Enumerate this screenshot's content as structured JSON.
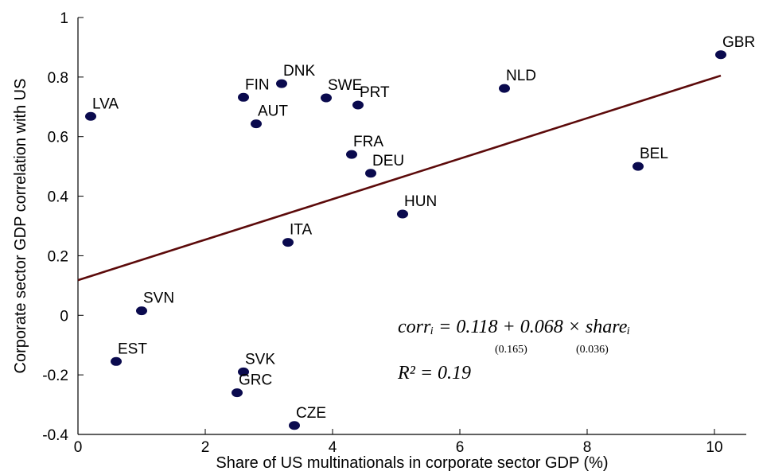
{
  "chart_data": {
    "type": "scatter",
    "xlabel": "Share of US multinationals in corporate sector GDP (%)",
    "ylabel": "Corporate sector GDP correlation with US",
    "xlim": [
      0,
      10.5
    ],
    "ylim": [
      -0.4,
      1
    ],
    "xticks": [
      0,
      2,
      4,
      6,
      8,
      10
    ],
    "yticks": [
      -0.4,
      -0.2,
      0,
      0.2,
      0.4,
      0.6,
      0.8,
      1
    ],
    "xtick_labels": [
      "0",
      "2",
      "4",
      "6",
      "8",
      "10"
    ],
    "ytick_labels": [
      "-0.4",
      "-0.2",
      "0",
      "0.2",
      "0.4",
      "0.6",
      "0.8",
      "1"
    ],
    "grid": false,
    "point_color": "#0a0a4e",
    "line_color": "#5c0a0a",
    "points": [
      {
        "label": "GBR",
        "x": 10.1,
        "y": 0.875
      },
      {
        "label": "NLD",
        "x": 6.7,
        "y": 0.762
      },
      {
        "label": "BEL",
        "x": 8.8,
        "y": 0.5
      },
      {
        "label": "HUN",
        "x": 5.1,
        "y": 0.34
      },
      {
        "label": "DEU",
        "x": 4.6,
        "y": 0.477
      },
      {
        "label": "FRA",
        "x": 4.3,
        "y": 0.54
      },
      {
        "label": "PRT",
        "x": 4.4,
        "y": 0.706
      },
      {
        "label": "SWE",
        "x": 3.9,
        "y": 0.73
      },
      {
        "label": "DNK",
        "x": 3.2,
        "y": 0.778
      },
      {
        "label": "FIN",
        "x": 2.6,
        "y": 0.732
      },
      {
        "label": "AUT",
        "x": 2.8,
        "y": 0.643
      },
      {
        "label": "LVA",
        "x": 0.2,
        "y": 0.668
      },
      {
        "label": "ITA",
        "x": 3.3,
        "y": 0.245
      },
      {
        "label": "SVN",
        "x": 1.0,
        "y": 0.015
      },
      {
        "label": "EST",
        "x": 0.6,
        "y": -0.155
      },
      {
        "label": "SVK",
        "x": 2.6,
        "y": -0.19
      },
      {
        "label": "GRC",
        "x": 2.5,
        "y": -0.26
      },
      {
        "label": "CZE",
        "x": 3.4,
        "y": -0.37
      }
    ],
    "fit_line": {
      "intercept": 0.118,
      "slope": 0.068,
      "x_range": [
        0,
        10.1
      ]
    },
    "annotation": {
      "equation": "corrᵢ = 0.118 + 0.068 × shareᵢ",
      "se_intercept": "(0.165)",
      "se_slope": "(0.036)",
      "r_squared": "R² = 0.19"
    }
  }
}
